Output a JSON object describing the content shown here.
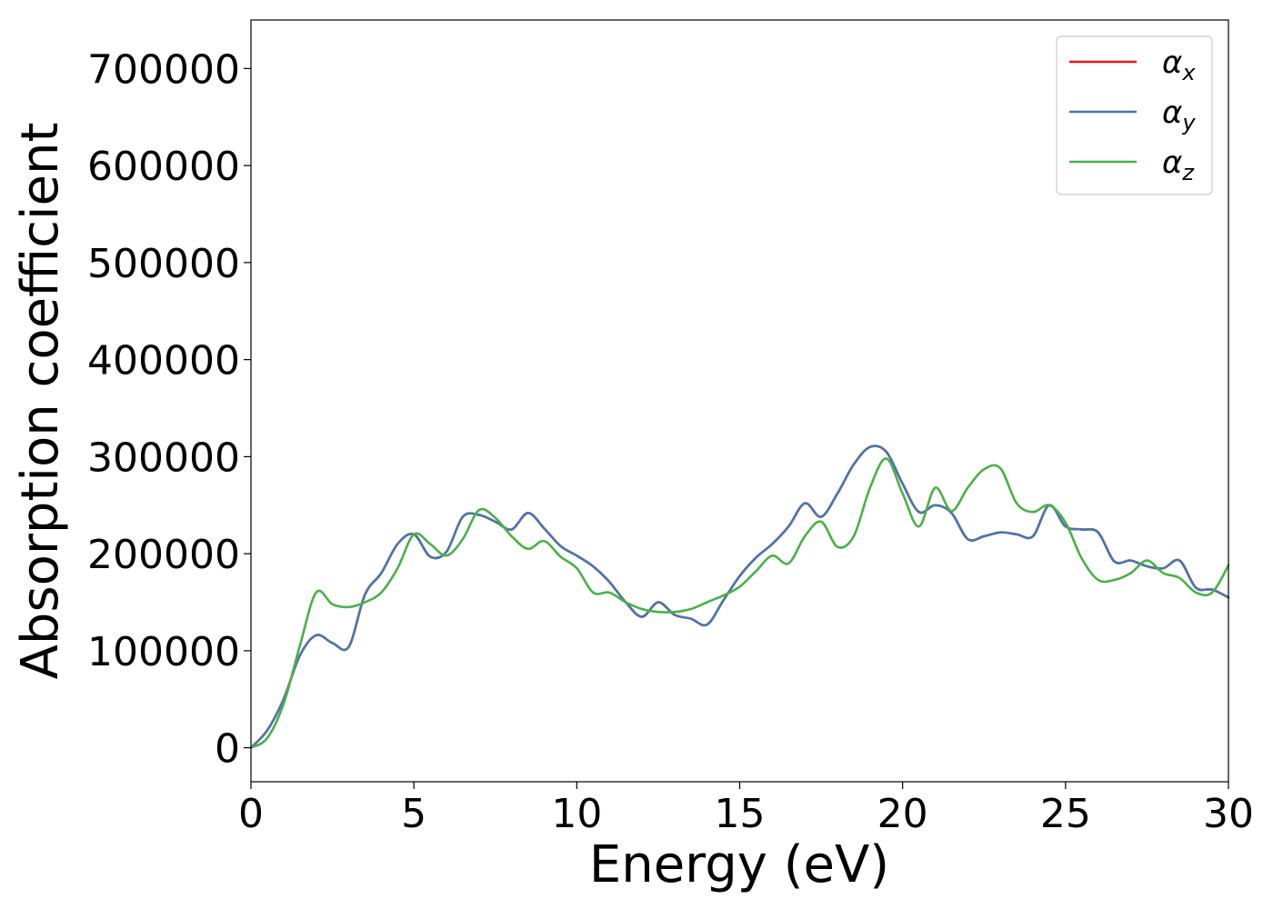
{
  "chart_data": {
    "type": "line",
    "xlabel": "Energy (eV)",
    "ylabel": "Absorption coefficient",
    "xlim": [
      0,
      30
    ],
    "ylim": [
      -35000,
      750000
    ],
    "xticks": [
      0,
      5,
      10,
      15,
      20,
      25,
      30
    ],
    "yticks": [
      0,
      100000,
      200000,
      300000,
      400000,
      500000,
      600000,
      700000
    ],
    "grid": false,
    "legend_position": "top-right",
    "series": [
      {
        "name": "α_x",
        "legend_main": "α",
        "legend_sub": "x",
        "color": "#e41a1c",
        "x": [
          0,
          0.5,
          1,
          1.5,
          2,
          2.5,
          3,
          3.5,
          4,
          4.5,
          5,
          5.5,
          6,
          6.5,
          7,
          7.5,
          8,
          8.5,
          9,
          9.5,
          10,
          10.5,
          11,
          11.5,
          12,
          12.5,
          13,
          13.5,
          14,
          14.5,
          15,
          15.5,
          16,
          16.5,
          17,
          17.5,
          18,
          18.5,
          19,
          19.5,
          20,
          20.5,
          21,
          21.5,
          22,
          22.5,
          23,
          23.5,
          24,
          24.5,
          25,
          25.5,
          26,
          26.5,
          27,
          27.5,
          28,
          28.5,
          29,
          29.5,
          30
        ],
        "y": [
          0,
          18000,
          50000,
          95000,
          116000,
          108000,
          104000,
          158000,
          180000,
          210000,
          220000,
          197000,
          202000,
          238000,
          240000,
          233000,
          225000,
          242000,
          226000,
          208000,
          198000,
          187000,
          171000,
          150000,
          135000,
          150000,
          137000,
          133000,
          127000,
          152000,
          177000,
          196000,
          210000,
          228000,
          252000,
          238000,
          262000,
          292000,
          310000,
          305000,
          272000,
          243000,
          250000,
          242000,
          215000,
          218000,
          222000,
          220000,
          218000,
          250000,
          228000,
          225000,
          222000,
          192000,
          193000,
          187000,
          185000,
          193000,
          165000,
          163000,
          155000
        ]
      },
      {
        "name": "α_y",
        "legend_main": "α",
        "legend_sub": "y",
        "color": "#4a77aa",
        "x": [
          0,
          0.5,
          1,
          1.5,
          2,
          2.5,
          3,
          3.5,
          4,
          4.5,
          5,
          5.5,
          6,
          6.5,
          7,
          7.5,
          8,
          8.5,
          9,
          9.5,
          10,
          10.5,
          11,
          11.5,
          12,
          12.5,
          13,
          13.5,
          14,
          14.5,
          15,
          15.5,
          16,
          16.5,
          17,
          17.5,
          18,
          18.5,
          19,
          19.5,
          20,
          20.5,
          21,
          21.5,
          22,
          22.5,
          23,
          23.5,
          24,
          24.5,
          25,
          25.5,
          26,
          26.5,
          27,
          27.5,
          28,
          28.5,
          29,
          29.5,
          30
        ],
        "y": [
          0,
          18000,
          50000,
          95000,
          116000,
          108000,
          104000,
          158000,
          180000,
          210000,
          220000,
          197000,
          202000,
          238000,
          240000,
          233000,
          225000,
          242000,
          226000,
          208000,
          198000,
          187000,
          171000,
          150000,
          135000,
          150000,
          137000,
          133000,
          127000,
          152000,
          177000,
          196000,
          210000,
          228000,
          252000,
          238000,
          262000,
          292000,
          310000,
          305000,
          272000,
          243000,
          250000,
          242000,
          215000,
          218000,
          222000,
          220000,
          218000,
          250000,
          228000,
          225000,
          222000,
          192000,
          193000,
          187000,
          185000,
          193000,
          165000,
          163000,
          155000
        ]
      },
      {
        "name": "α_z",
        "legend_main": "α",
        "legend_sub": "z",
        "color": "#4daf4a",
        "x": [
          0,
          0.5,
          1,
          1.5,
          2,
          2.5,
          3,
          3.5,
          4,
          4.5,
          5,
          5.5,
          6,
          6.5,
          7,
          7.5,
          8,
          8.5,
          9,
          9.5,
          10,
          10.5,
          11,
          11.5,
          12,
          12.5,
          13,
          13.5,
          14,
          14.5,
          15,
          15.5,
          16,
          16.5,
          17,
          17.5,
          18,
          18.5,
          19,
          19.5,
          20,
          20.5,
          21,
          21.5,
          22,
          22.5,
          23,
          23.5,
          24,
          24.5,
          25,
          25.5,
          26,
          26.5,
          27,
          27.5,
          28,
          28.5,
          29,
          29.5,
          30
        ],
        "y": [
          0,
          10000,
          45000,
          105000,
          160000,
          148000,
          145000,
          150000,
          160000,
          185000,
          220000,
          210000,
          198000,
          215000,
          245000,
          237000,
          218000,
          205000,
          213000,
          197000,
          185000,
          160000,
          160000,
          150000,
          143000,
          140000,
          140000,
          143000,
          150000,
          157000,
          166000,
          182000,
          198000,
          190000,
          218000,
          233000,
          207000,
          218000,
          268000,
          298000,
          262000,
          228000,
          268000,
          244000,
          268000,
          287000,
          288000,
          252000,
          243000,
          250000,
          232000,
          195000,
          173000,
          173000,
          180000,
          193000,
          180000,
          175000,
          160000,
          160000,
          188000
        ]
      }
    ]
  }
}
